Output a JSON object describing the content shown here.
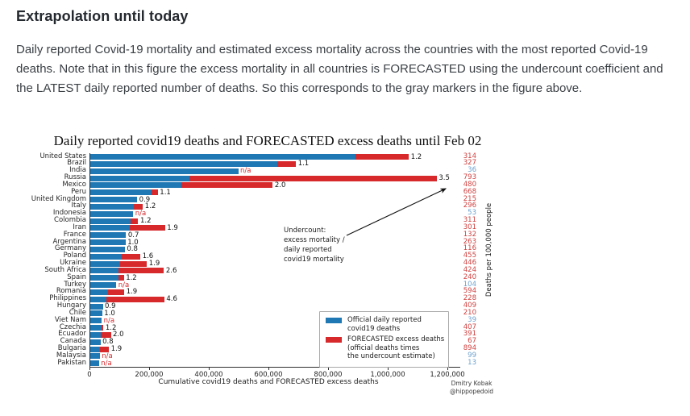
{
  "page": {
    "heading": "Extrapolation until today",
    "paragraph": "Daily reported Covid-19 mortality and estimated excess mortality across the countries with the most reported Covid-19 deaths. Note that in this figure the excess mortality in all countries is FORECASTED using the undercount coefficient and the LATEST daily reported number of deaths. So this corresponds to the gray markers in the figure above."
  },
  "chart_data": {
    "type": "bar",
    "orientation": "horizontal",
    "title": "Daily reported covid19 deaths and FORECASTED excess deaths until Feb 02",
    "xlabel": "Cumulative covid19 deaths and FORECASTED excess deaths",
    "right_axis_label": "Deaths per 100,000 people",
    "x_ticks": [
      "0",
      "200,000",
      "400,000",
      "600,000",
      "800,000",
      "1,000,000",
      "1,200,000"
    ],
    "xlim": [
      0,
      1200000
    ],
    "grid": false,
    "legend_position": "lower right",
    "colors": {
      "official_bar": "#1f77b4",
      "excess_bar": "#d7282c",
      "na_label": "#d7282c",
      "per100k_red": "#d0403f",
      "per100k_blue": "#6ca0ce"
    },
    "annotation": {
      "lines": [
        "Undercount:",
        "excess mortality /",
        "daily reported",
        "covid19 mortality"
      ]
    },
    "legend": [
      {
        "swatch": "official-color",
        "lines": [
          "Official daily reported",
          "covid19 deaths"
        ]
      },
      {
        "swatch": "excess-color",
        "lines": [
          "FORECASTED excess deaths",
          "(official deaths times",
          "the undercount estimate)"
        ]
      }
    ],
    "credit_lines": [
      "Dmitry Kobak",
      "@hippopedoid"
    ],
    "countries": [
      {
        "name": "United States",
        "official_deaths": 890000,
        "undercount": "1.2",
        "per100k": "314",
        "na": false
      },
      {
        "name": "Brazil",
        "official_deaths": 627000,
        "undercount": "1.1",
        "per100k": "327",
        "na": false
      },
      {
        "name": "India",
        "official_deaths": 496000,
        "undercount": "n/a",
        "per100k": "36",
        "na": true
      },
      {
        "name": "Russia",
        "official_deaths": 332000,
        "undercount": "3.5",
        "per100k": "793",
        "na": false
      },
      {
        "name": "Mexico",
        "official_deaths": 306000,
        "undercount": "2.0",
        "per100k": "480",
        "na": false
      },
      {
        "name": "Peru",
        "official_deaths": 206000,
        "undercount": "1.1",
        "per100k": "668",
        "na": false
      },
      {
        "name": "United Kingdom",
        "official_deaths": 157000,
        "undercount": "0.9",
        "per100k": "215",
        "na": false
      },
      {
        "name": "Italy",
        "official_deaths": 147000,
        "undercount": "1.2",
        "per100k": "296",
        "na": false
      },
      {
        "name": "Indonesia",
        "official_deaths": 144000,
        "undercount": "n/a",
        "per100k": "53",
        "na": true
      },
      {
        "name": "Colombia",
        "official_deaths": 134000,
        "undercount": "1.2",
        "per100k": "311",
        "na": false
      },
      {
        "name": "Iran",
        "official_deaths": 132000,
        "undercount": "1.9",
        "per100k": "301",
        "na": false
      },
      {
        "name": "France",
        "official_deaths": 120000,
        "undercount": "0.7",
        "per100k": "132",
        "na": false
      },
      {
        "name": "Argentina",
        "official_deaths": 118000,
        "undercount": "1.0",
        "per100k": "263",
        "na": false
      },
      {
        "name": "Germany",
        "official_deaths": 116000,
        "undercount": "0.8",
        "per100k": "116",
        "na": false
      },
      {
        "name": "Poland",
        "official_deaths": 105000,
        "undercount": "1.6",
        "per100k": "455",
        "na": false
      },
      {
        "name": "Ukraine",
        "official_deaths": 100000,
        "undercount": "1.9",
        "per100k": "446",
        "na": false
      },
      {
        "name": "South Africa",
        "official_deaths": 95000,
        "undercount": "2.6",
        "per100k": "424",
        "na": false
      },
      {
        "name": "Spain",
        "official_deaths": 94000,
        "undercount": "1.2",
        "per100k": "240",
        "na": false
      },
      {
        "name": "Turkey",
        "official_deaths": 87000,
        "undercount": "n/a",
        "per100k": "104",
        "na": true
      },
      {
        "name": "Romania",
        "official_deaths": 60000,
        "undercount": "1.9",
        "per100k": "594",
        "na": false
      },
      {
        "name": "Philippines",
        "official_deaths": 54000,
        "undercount": "4.6",
        "per100k": "228",
        "na": false
      },
      {
        "name": "Hungary",
        "official_deaths": 42000,
        "undercount": "0.9",
        "per100k": "409",
        "na": false
      },
      {
        "name": "Chile",
        "official_deaths": 40000,
        "undercount": "1.0",
        "per100k": "210",
        "na": false
      },
      {
        "name": "Viet Nam",
        "official_deaths": 38000,
        "undercount": "n/a",
        "per100k": "39",
        "na": true
      },
      {
        "name": "Czechia",
        "official_deaths": 37000,
        "undercount": "1.2",
        "per100k": "407",
        "na": false
      },
      {
        "name": "Ecuador",
        "official_deaths": 34500,
        "undercount": "2.0",
        "per100k": "391",
        "na": false
      },
      {
        "name": "Canada",
        "official_deaths": 34000,
        "undercount": "0.8",
        "per100k": "67",
        "na": false
      },
      {
        "name": "Bulgaria",
        "official_deaths": 33000,
        "undercount": "1.9",
        "per100k": "894",
        "na": false
      },
      {
        "name": "Malaysia",
        "official_deaths": 32000,
        "undercount": "n/a",
        "per100k": "99",
        "na": true
      },
      {
        "name": "Pakistan",
        "official_deaths": 29000,
        "undercount": "n/a",
        "per100k": "13",
        "na": true
      }
    ]
  }
}
